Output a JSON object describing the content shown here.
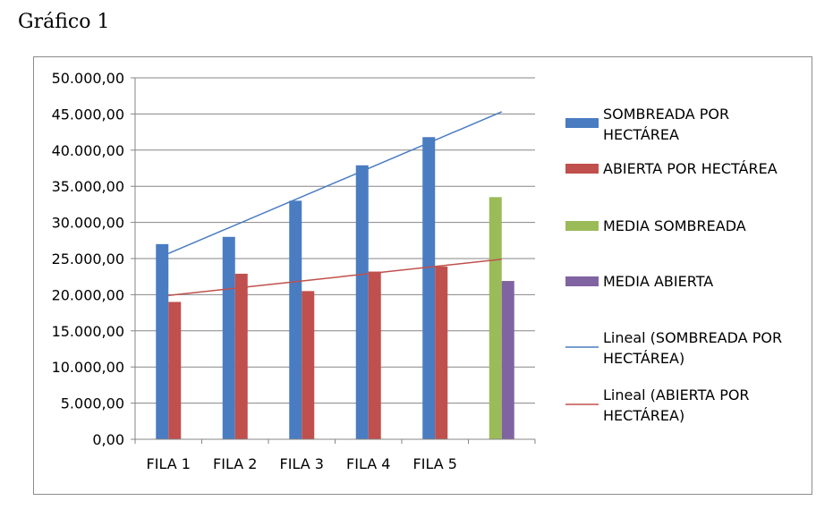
{
  "page": {
    "title": "Gráfico 1"
  },
  "chart_data": {
    "type": "bar",
    "categories": [
      "FILA 1",
      "FILA 2",
      "FILA 3",
      "FILA 4",
      "FILA 5",
      ""
    ],
    "series": [
      {
        "name": "SOMBREADA POR HECTÁREA",
        "color": "#4a7cc1",
        "values": [
          27000,
          28000,
          33000,
          37900,
          41800,
          null
        ]
      },
      {
        "name": "ABIERTA POR HECTÁREA",
        "color": "#c0504d",
        "values": [
          19000,
          22900,
          20500,
          23200,
          23900,
          null
        ]
      },
      {
        "name": "MEDIA SOMBREADA",
        "color": "#9bbb59",
        "values": [
          null,
          null,
          null,
          null,
          null,
          33500
        ]
      },
      {
        "name": "MEDIA ABIERTA",
        "color": "#8064a2",
        "values": [
          null,
          null,
          null,
          null,
          null,
          21900
        ]
      }
    ],
    "trendlines": [
      {
        "name": "Lineal (SOMBREADA POR HECTÁREA)",
        "color": "#4a7cc1",
        "values": [
          25700,
          29600,
          33500,
          37400,
          41300,
          45300
        ]
      },
      {
        "name": "Lineal (ABIERTA POR HECTÁREA)",
        "color": "#c0504d",
        "values": [
          19900,
          20900,
          21900,
          22900,
          23900,
          24900
        ]
      }
    ],
    "y_ticks": [
      "0,00",
      "5.000,00",
      "10.000,00",
      "15.000,00",
      "20.000,00",
      "25.000,00",
      "30.000,00",
      "35.000,00",
      "40.000,00",
      "45.000,00",
      "50.000,00"
    ],
    "ylim": [
      0,
      50000
    ],
    "grid": true,
    "legend_position": "right",
    "legend": [
      {
        "lines": [
          "SOMBREADA POR",
          "HECTÁREA"
        ],
        "color": "#4a7cc1",
        "kind": "box"
      },
      {
        "lines": [
          "ABIERTA POR HECTÁREA"
        ],
        "color": "#c0504d",
        "kind": "box"
      },
      {
        "lines": [
          "MEDIA SOMBREADA"
        ],
        "color": "#9bbb59",
        "kind": "box"
      },
      {
        "lines": [
          "MEDIA ABIERTA"
        ],
        "color": "#8064a2",
        "kind": "box"
      },
      {
        "lines": [
          "Lineal (SOMBREADA POR",
          "HECTÁREA)"
        ],
        "color": "#4a7cc1",
        "kind": "line"
      },
      {
        "lines": [
          "Lineal (ABIERTA POR",
          "HECTÁREA)"
        ],
        "color": "#c0504d",
        "kind": "line"
      }
    ]
  }
}
